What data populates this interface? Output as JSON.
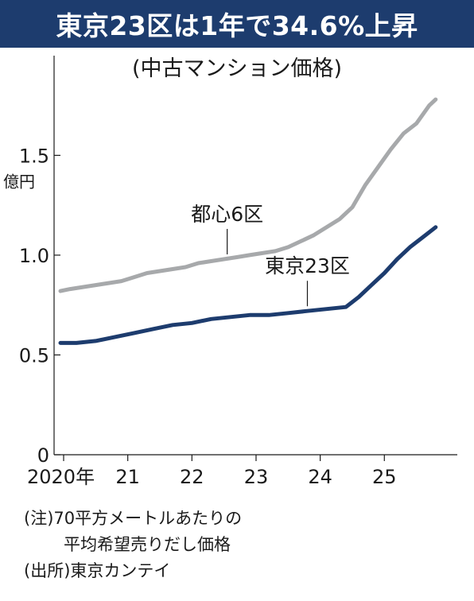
{
  "title": "東京23区は1年で34.6%上昇",
  "subtitle": "(中古マンション価格)",
  "notes": {
    "line1": "(注)70平方メートルあたりの",
    "line2": "平均希望売りだし価格",
    "source": "(出所)東京カンテイ"
  },
  "chart_data": {
    "type": "line",
    "title": "東京23区は1年で34.6%上昇",
    "subtitle": "(中古マンション価格)",
    "ylabel": "億円",
    "ylim": [
      0,
      1.9
    ],
    "yticks": [
      {
        "value": 0,
        "label": "0"
      },
      {
        "value": 0.5,
        "label": "0.5"
      },
      {
        "value": 1.0,
        "label": "1.0"
      },
      {
        "value": 1.5,
        "label": "1.5"
      }
    ],
    "xlim": [
      2020.0,
      2026.1
    ],
    "xticks": [
      {
        "value": 2020,
        "label": "2020年"
      },
      {
        "value": 2021,
        "label": "21"
      },
      {
        "value": 2022,
        "label": "22"
      },
      {
        "value": 2023,
        "label": "23"
      },
      {
        "value": 2024,
        "label": "24"
      },
      {
        "value": 2025,
        "label": "25"
      }
    ],
    "grid": false,
    "series": [
      {
        "name": "都心6区",
        "color": "#a7a9ab",
        "label_x": 2022.55,
        "label_y": 0.98,
        "points": [
          [
            2019.95,
            0.82
          ],
          [
            2020.1,
            0.83
          ],
          [
            2020.3,
            0.84
          ],
          [
            2020.5,
            0.85
          ],
          [
            2020.7,
            0.86
          ],
          [
            2020.9,
            0.87
          ],
          [
            2021.1,
            0.89
          ],
          [
            2021.3,
            0.91
          ],
          [
            2021.5,
            0.92
          ],
          [
            2021.7,
            0.93
          ],
          [
            2021.9,
            0.94
          ],
          [
            2022.1,
            0.96
          ],
          [
            2022.3,
            0.97
          ],
          [
            2022.5,
            0.98
          ],
          [
            2022.7,
            0.99
          ],
          [
            2022.9,
            1.0
          ],
          [
            2023.1,
            1.01
          ],
          [
            2023.3,
            1.02
          ],
          [
            2023.5,
            1.04
          ],
          [
            2023.7,
            1.07
          ],
          [
            2023.9,
            1.1
          ],
          [
            2024.1,
            1.14
          ],
          [
            2024.3,
            1.18
          ],
          [
            2024.5,
            1.24
          ],
          [
            2024.7,
            1.35
          ],
          [
            2024.9,
            1.44
          ],
          [
            2025.1,
            1.53
          ],
          [
            2025.3,
            1.61
          ],
          [
            2025.5,
            1.66
          ],
          [
            2025.7,
            1.75
          ],
          [
            2025.8,
            1.78
          ]
        ]
      },
      {
        "name": "東京23区",
        "color": "#1d3c6e",
        "label_x": 2023.8,
        "label_y": 0.72,
        "points": [
          [
            2019.95,
            0.56
          ],
          [
            2020.2,
            0.56
          ],
          [
            2020.5,
            0.57
          ],
          [
            2020.8,
            0.59
          ],
          [
            2021.1,
            0.61
          ],
          [
            2021.4,
            0.63
          ],
          [
            2021.7,
            0.65
          ],
          [
            2022.0,
            0.66
          ],
          [
            2022.3,
            0.68
          ],
          [
            2022.6,
            0.69
          ],
          [
            2022.9,
            0.7
          ],
          [
            2023.2,
            0.7
          ],
          [
            2023.5,
            0.71
          ],
          [
            2023.8,
            0.72
          ],
          [
            2024.1,
            0.73
          ],
          [
            2024.4,
            0.74
          ],
          [
            2024.6,
            0.79
          ],
          [
            2024.8,
            0.85
          ],
          [
            2025.0,
            0.91
          ],
          [
            2025.2,
            0.98
          ],
          [
            2025.4,
            1.04
          ],
          [
            2025.6,
            1.09
          ],
          [
            2025.8,
            1.14
          ]
        ]
      }
    ]
  }
}
